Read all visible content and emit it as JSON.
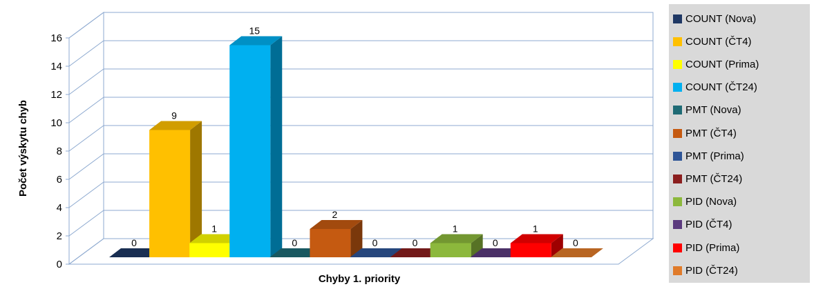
{
  "chart_data": {
    "type": "bar",
    "style": "3d-clustered-column",
    "categories": [
      "Chyby 1. priority"
    ],
    "xlabel": "Chyby 1. priority",
    "ylabel": "Počet výskytu chyb",
    "ylim": [
      0,
      16
    ],
    "yticks": [
      "0",
      "2",
      "4",
      "6",
      "8",
      "10",
      "12",
      "14",
      "16"
    ],
    "grid": true,
    "legend_position": "right",
    "series": [
      {
        "name": "COUNT (Nova)",
        "value": 0,
        "label": "0",
        "color": "#1f3864"
      },
      {
        "name": "COUNT (ČT4)",
        "value": 9,
        "label": "9",
        "color": "#ffc000"
      },
      {
        "name": "COUNT (Prima)",
        "value": 1,
        "label": "1",
        "color": "#ffff00"
      },
      {
        "name": "COUNT (ČT24)",
        "value": 15,
        "label": "15",
        "color": "#00b0f0"
      },
      {
        "name": "PMT (Nova)",
        "value": 0,
        "label": "0",
        "color": "#1f6b75"
      },
      {
        "name": "PMT (ČT4)",
        "value": 2,
        "label": "2",
        "color": "#c55a11"
      },
      {
        "name": "PMT (Prima)",
        "value": 0,
        "label": "0",
        "color": "#2e5597"
      },
      {
        "name": "PMT (ČT24)",
        "value": 0,
        "label": "0",
        "color": "#8b1e1e"
      },
      {
        "name": "PID (Nova)",
        "value": 1,
        "label": "1",
        "color": "#8cb83c"
      },
      {
        "name": "PID (ČT4)",
        "value": 0,
        "label": "0",
        "color": "#5b3a7e"
      },
      {
        "name": "PID (Prima)",
        "value": 1,
        "label": "1",
        "color": "#ff0000"
      },
      {
        "name": "PID (ČT24)",
        "value": 0,
        "label": "0",
        "color": "#e07b2a"
      }
    ]
  }
}
